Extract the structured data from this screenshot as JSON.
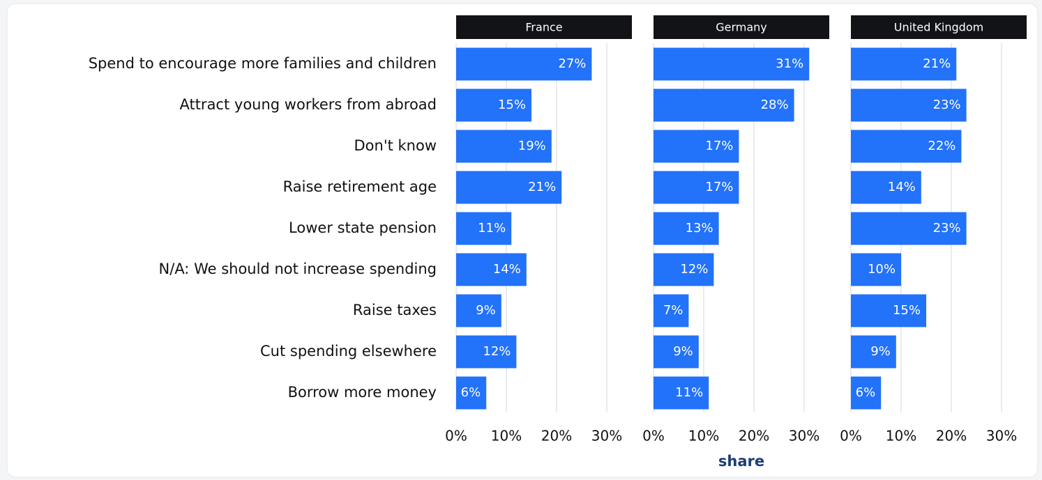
{
  "chart_data": {
    "type": "bar",
    "orientation": "horizontal",
    "facets": true,
    "categories": [
      "Spend to encourage more families and children",
      "Attract young workers from abroad",
      "Don't know",
      "Raise retirement age",
      "Lower state pension",
      "N/A: We should not increase spending",
      "Raise taxes",
      "Cut spending elsewhere",
      "Borrow more money"
    ],
    "series": [
      {
        "name": "France",
        "color": "#2272fa",
        "values": [
          27,
          15,
          19,
          21,
          11,
          14,
          9,
          12,
          6
        ],
        "value_labels": [
          "27%",
          "15%",
          "19%",
          "21%",
          "11%",
          "14%",
          "9%",
          "12%",
          "6%"
        ]
      },
      {
        "name": "Germany",
        "color": "#2272fa",
        "values": [
          31,
          28,
          17,
          17,
          13,
          12,
          7,
          9,
          11
        ],
        "value_labels": [
          "31%",
          "28%",
          "17%",
          "17%",
          "13%",
          "12%",
          "7%",
          "9%",
          "11%"
        ]
      },
      {
        "name": "United Kingdom",
        "color": "#2272fa",
        "values": [
          21,
          23,
          22,
          14,
          23,
          10,
          15,
          9,
          6
        ],
        "value_labels": [
          "21%",
          "23%",
          "22%",
          "14%",
          "23%",
          "10%",
          "15%",
          "9%",
          "6%"
        ]
      }
    ],
    "xlim": [
      0,
      35
    ],
    "xticks": [
      {
        "value": 0,
        "label": "0%"
      },
      {
        "value": 10,
        "label": "10%"
      },
      {
        "value": 20,
        "label": "20%"
      },
      {
        "value": 30,
        "label": "30%"
      }
    ],
    "xlabel": "share",
    "grid": true
  }
}
